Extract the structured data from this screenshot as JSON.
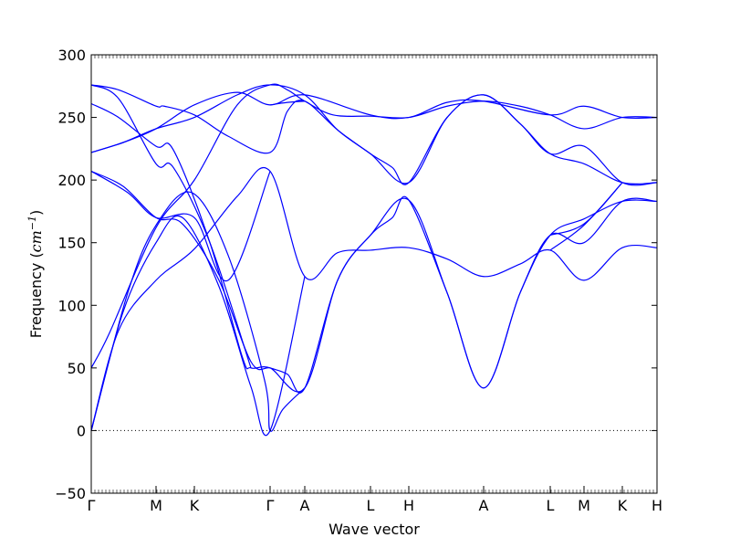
{
  "chart_data": {
    "type": "line",
    "xlabel": "Wave vector",
    "ylabel": "Frequency (cm⁻¹)",
    "ylabel_prefix": "Frequency (",
    "ylabel_unit": "cm",
    "ylabel_exp": "−1",
    "ylabel_suffix": ")",
    "ylim": [
      -50,
      300
    ],
    "yticks": [
      -50,
      0,
      50,
      100,
      150,
      200,
      250,
      300
    ],
    "ytick_labels": [
      "−50",
      "0",
      "50",
      "100",
      "150",
      "200",
      "250",
      "300"
    ],
    "xlim": [
      0,
      620
    ],
    "high_symmetry_points": [
      {
        "label": "Γ",
        "x": 0
      },
      {
        "label": "M",
        "x": 71
      },
      {
        "label": "K",
        "x": 113
      },
      {
        "label": "Γ",
        "x": 196
      },
      {
        "label": "A",
        "x": 234
      },
      {
        "label": "L",
        "x": 306
      },
      {
        "label": "H",
        "x": 348
      },
      {
        "label": "A",
        "x": 430
      },
      {
        "label": "L",
        "x": 503
      },
      {
        "label": "M",
        "x": 540
      },
      {
        "label": "K",
        "x": 582
      },
      {
        "label": "H",
        "x": 620
      }
    ],
    "zero_line": {
      "y": 0,
      "style": "dotted"
    },
    "series_color": "#0000ff",
    "series": [
      {
        "values": [
          [
            0,
            0
          ],
          [
            35,
            95
          ],
          [
            71,
            150
          ],
          [
            100,
            170
          ],
          [
            140,
            115
          ],
          [
            175,
            35
          ],
          [
            196,
            0
          ],
          [
            234,
            123
          ]
        ]
      },
      {
        "values": [
          [
            0,
            0
          ],
          [
            40,
            110
          ],
          [
            71,
            164
          ],
          [
            110,
            190
          ],
          [
            150,
            140
          ],
          [
            190,
            40
          ],
          [
            196,
            0
          ],
          [
            210,
            17
          ],
          [
            234,
            34
          ]
        ]
      },
      {
        "values": [
          [
            0,
            50
          ],
          [
            20,
            78
          ],
          [
            71,
            162
          ],
          [
            113,
            200
          ],
          [
            160,
            260
          ],
          [
            196,
            276
          ],
          [
            215,
            272
          ],
          [
            234,
            263
          ],
          [
            265,
            252
          ],
          [
            306,
            251
          ],
          [
            348,
            250
          ],
          [
            390,
            259
          ],
          [
            430,
            263
          ],
          [
            470,
            259
          ],
          [
            503,
            252
          ],
          [
            540,
            241
          ],
          [
            582,
            250
          ],
          [
            620,
            250
          ]
        ]
      },
      {
        "values": [
          [
            0,
            0
          ],
          [
            30,
            80
          ],
          [
            71,
            120
          ],
          [
            113,
            145
          ],
          [
            160,
            187
          ],
          [
            196,
            207
          ],
          [
            234,
            123
          ],
          [
            270,
            142
          ],
          [
            306,
            144
          ],
          [
            348,
            146
          ],
          [
            390,
            137
          ],
          [
            430,
            123
          ],
          [
            470,
            133
          ],
          [
            503,
            144
          ],
          [
            540,
            120
          ],
          [
            582,
            146
          ],
          [
            620,
            146
          ]
        ]
      },
      {
        "values": [
          [
            0,
            207
          ],
          [
            35,
            195
          ],
          [
            71,
            170
          ],
          [
            100,
            165
          ],
          [
            140,
            120
          ],
          [
            175,
            55
          ],
          [
            196,
            50
          ],
          [
            215,
            45
          ],
          [
            234,
            34
          ],
          [
            270,
            120
          ],
          [
            306,
            156
          ],
          [
            330,
            170
          ],
          [
            348,
            184
          ],
          [
            390,
            110
          ],
          [
            430,
            34
          ],
          [
            470,
            110
          ],
          [
            503,
            156
          ],
          [
            540,
            169
          ],
          [
            582,
            183
          ],
          [
            620,
            183
          ]
        ]
      },
      {
        "values": [
          [
            0,
            261
          ],
          [
            30,
            250
          ],
          [
            71,
            227
          ],
          [
            90,
            224
          ],
          [
            130,
            150
          ],
          [
            165,
            60
          ],
          [
            175,
            50
          ],
          [
            196,
            50
          ],
          [
            234,
            34
          ],
          [
            270,
            120
          ],
          [
            306,
            156
          ],
          [
            348,
            184
          ],
          [
            390,
            110
          ],
          [
            430,
            34
          ],
          [
            470,
            110
          ],
          [
            503,
            156
          ],
          [
            540,
            150
          ],
          [
            582,
            183
          ],
          [
            620,
            183
          ]
        ]
      },
      {
        "values": [
          [
            0,
            276
          ],
          [
            30,
            265
          ],
          [
            71,
            213
          ],
          [
            90,
            210
          ],
          [
            130,
            150
          ],
          [
            175,
            50
          ]
        ]
      },
      {
        "values": [
          [
            0,
            276
          ],
          [
            30,
            272
          ],
          [
            71,
            259
          ],
          [
            80,
            259
          ],
          [
            113,
            252
          ],
          [
            150,
            235
          ],
          [
            196,
            222
          ],
          [
            215,
            255
          ],
          [
            234,
            263
          ],
          [
            270,
            240
          ],
          [
            306,
            221
          ],
          [
            330,
            210
          ],
          [
            348,
            198
          ],
          [
            390,
            250
          ],
          [
            430,
            268
          ],
          [
            470,
            245
          ],
          [
            503,
            221
          ],
          [
            540,
            213
          ],
          [
            582,
            198
          ],
          [
            620,
            198
          ]
        ]
      },
      {
        "values": [
          [
            0,
            222
          ],
          [
            35,
            230
          ],
          [
            71,
            241
          ],
          [
            113,
            250
          ],
          [
            160,
            268
          ],
          [
            196,
            276
          ],
          [
            234,
            268
          ],
          [
            270,
            240
          ],
          [
            306,
            221
          ],
          [
            348,
            198
          ],
          [
            390,
            250
          ],
          [
            430,
            268
          ],
          [
            470,
            245
          ],
          [
            503,
            221
          ],
          [
            540,
            227
          ],
          [
            582,
            198
          ],
          [
            620,
            198
          ]
        ]
      },
      {
        "values": [
          [
            0,
            222
          ],
          [
            35,
            230
          ],
          [
            71,
            241
          ],
          [
            113,
            260
          ],
          [
            160,
            270
          ],
          [
            196,
            260
          ],
          [
            234,
            268
          ],
          [
            306,
            252
          ],
          [
            348,
            250
          ],
          [
            390,
            262
          ],
          [
            430,
            263
          ],
          [
            503,
            252
          ],
          [
            540,
            259
          ],
          [
            582,
            250
          ],
          [
            620,
            250
          ]
        ]
      },
      {
        "values": [
          [
            0,
            207
          ],
          [
            40,
            190
          ],
          [
            71,
            170
          ],
          [
            113,
            170
          ],
          [
            150,
            120
          ],
          [
            196,
            207
          ]
        ]
      },
      {
        "values": [
          [
            196,
            260
          ],
          [
            215,
            262
          ],
          [
            234,
            263
          ]
        ]
      },
      {
        "values": [
          [
            503,
            144
          ],
          [
            540,
            164
          ],
          [
            582,
            198
          ]
        ]
      },
      {
        "values": [
          [
            503,
            156
          ],
          [
            540,
            165
          ],
          [
            582,
            198
          ]
        ]
      }
    ]
  }
}
